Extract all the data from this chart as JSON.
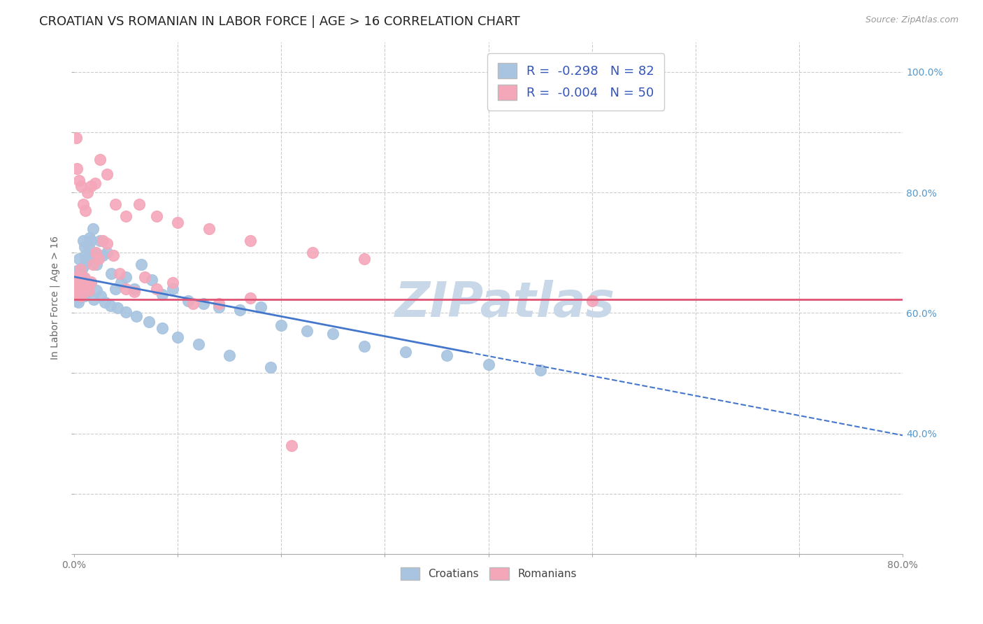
{
  "title": "CROATIAN VS ROMANIAN IN LABOR FORCE | AGE > 16 CORRELATION CHART",
  "source": "Source: ZipAtlas.com",
  "ylabel": "In Labor Force | Age > 16",
  "xlim": [
    0.0,
    0.8
  ],
  "ylim": [
    0.2,
    1.05
  ],
  "x_ticks": [
    0.0,
    0.1,
    0.2,
    0.3,
    0.4,
    0.5,
    0.6,
    0.7,
    0.8
  ],
  "x_tick_labels": [
    "0.0%",
    "",
    "",
    "",
    "",
    "",
    "",
    "",
    "80.0%"
  ],
  "y_ticks": [
    0.2,
    0.3,
    0.4,
    0.5,
    0.6,
    0.7,
    0.8,
    0.9,
    1.0
  ],
  "y_tick_labels_right": [
    "",
    "",
    "40.0%",
    "",
    "60.0%",
    "",
    "80.0%",
    "",
    "100.0%"
  ],
  "croatian_color": "#a8c4e0",
  "romanian_color": "#f4a7b9",
  "trend_blue_color": "#4477cc",
  "trend_pink_color": "#e05575",
  "watermark": "ZIPatlas",
  "watermark_color": "#c8d8e8",
  "R_croatian": -0.298,
  "N_croatian": 82,
  "R_romanian": -0.004,
  "N_romanian": 50,
  "croatians_x": [
    0.001,
    0.001,
    0.002,
    0.002,
    0.002,
    0.003,
    0.003,
    0.003,
    0.004,
    0.004,
    0.004,
    0.005,
    0.005,
    0.005,
    0.006,
    0.006,
    0.007,
    0.007,
    0.008,
    0.008,
    0.009,
    0.01,
    0.01,
    0.011,
    0.012,
    0.013,
    0.014,
    0.015,
    0.016,
    0.018,
    0.02,
    0.022,
    0.025,
    0.028,
    0.032,
    0.036,
    0.04,
    0.045,
    0.05,
    0.058,
    0.065,
    0.075,
    0.085,
    0.095,
    0.11,
    0.125,
    0.14,
    0.16,
    0.18,
    0.2,
    0.225,
    0.25,
    0.28,
    0.32,
    0.36,
    0.4,
    0.45,
    0.003,
    0.004,
    0.005,
    0.006,
    0.007,
    0.008,
    0.009,
    0.01,
    0.012,
    0.014,
    0.016,
    0.019,
    0.022,
    0.026,
    0.03,
    0.035,
    0.042,
    0.05,
    0.06,
    0.072,
    0.085,
    0.1,
    0.12,
    0.15,
    0.19
  ],
  "croatians_y": [
    0.635,
    0.65,
    0.64,
    0.66,
    0.62,
    0.655,
    0.67,
    0.645,
    0.632,
    0.668,
    0.618,
    0.66,
    0.69,
    0.625,
    0.655,
    0.672,
    0.66,
    0.64,
    0.658,
    0.675,
    0.72,
    0.68,
    0.71,
    0.695,
    0.685,
    0.69,
    0.71,
    0.725,
    0.72,
    0.74,
    0.7,
    0.68,
    0.72,
    0.695,
    0.7,
    0.665,
    0.64,
    0.65,
    0.66,
    0.64,
    0.68,
    0.655,
    0.63,
    0.64,
    0.62,
    0.615,
    0.61,
    0.605,
    0.61,
    0.58,
    0.57,
    0.565,
    0.545,
    0.535,
    0.53,
    0.515,
    0.505,
    0.645,
    0.638,
    0.652,
    0.63,
    0.648,
    0.638,
    0.66,
    0.628,
    0.648,
    0.635,
    0.65,
    0.622,
    0.638,
    0.628,
    0.618,
    0.612,
    0.608,
    0.602,
    0.595,
    0.585,
    0.575,
    0.56,
    0.548,
    0.53,
    0.51
  ],
  "romanians_x": [
    0.001,
    0.002,
    0.003,
    0.004,
    0.005,
    0.006,
    0.007,
    0.008,
    0.009,
    0.01,
    0.012,
    0.014,
    0.016,
    0.018,
    0.021,
    0.024,
    0.028,
    0.032,
    0.038,
    0.044,
    0.05,
    0.058,
    0.068,
    0.08,
    0.095,
    0.115,
    0.14,
    0.17,
    0.21,
    0.5,
    0.002,
    0.003,
    0.005,
    0.007,
    0.009,
    0.011,
    0.013,
    0.016,
    0.02,
    0.025,
    0.032,
    0.04,
    0.05,
    0.063,
    0.08,
    0.1,
    0.13,
    0.17,
    0.23,
    0.28
  ],
  "romanians_y": [
    0.645,
    0.63,
    0.66,
    0.655,
    0.638,
    0.672,
    0.628,
    0.652,
    0.64,
    0.658,
    0.648,
    0.638,
    0.652,
    0.68,
    0.7,
    0.69,
    0.72,
    0.715,
    0.695,
    0.665,
    0.64,
    0.635,
    0.66,
    0.64,
    0.65,
    0.615,
    0.615,
    0.625,
    0.38,
    0.62,
    0.89,
    0.84,
    0.82,
    0.81,
    0.78,
    0.77,
    0.8,
    0.81,
    0.815,
    0.855,
    0.83,
    0.78,
    0.76,
    0.78,
    0.76,
    0.75,
    0.74,
    0.72,
    0.7,
    0.69
  ],
  "trend_blue_start_x": 0.0,
  "trend_blue_solid_end_x": 0.38,
  "trend_blue_end_x": 0.8,
  "trend_blue_start_y": 0.66,
  "trend_blue_solid_end_y": 0.535,
  "trend_blue_end_y": 0.43,
  "trend_pink_start_x": 0.0,
  "trend_pink_end_x": 0.8,
  "trend_pink_y": 0.623,
  "background_color": "#ffffff",
  "grid_color": "#cccccc",
  "title_fontsize": 13,
  "axis_label_fontsize": 10,
  "tick_fontsize": 10,
  "legend_fontsize": 13
}
